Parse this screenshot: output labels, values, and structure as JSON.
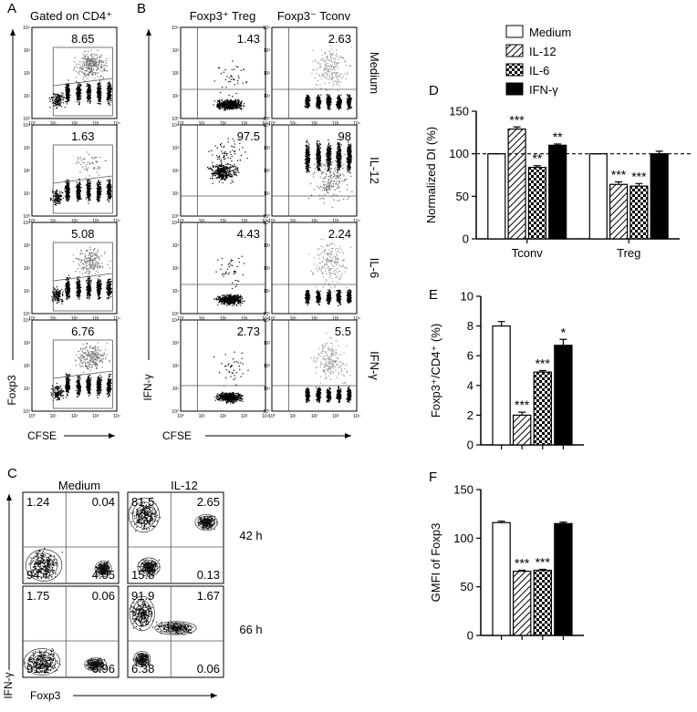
{
  "panel_letters": [
    "A",
    "B",
    "C",
    "D",
    "E",
    "F"
  ],
  "flow": {
    "axis_ticks": [
      "10⁰",
      "10¹",
      "10²",
      "10³",
      "10⁴"
    ],
    "a": {
      "title": "Gated on CD4⁺",
      "y_label": "Foxp3",
      "x_label": "CFSE",
      "gates": [
        8.65,
        1.63,
        5.08,
        6.76
      ]
    },
    "b": {
      "columns": [
        "Foxp3⁺ Treg",
        "Foxp3⁻ Tconv"
      ],
      "rows": [
        "Medium",
        "IL-12",
        "IL-6",
        "IFN-γ"
      ],
      "y_label": "IFN-γ",
      "x_label": "CFSE",
      "values": [
        [
          1.43,
          2.63
        ],
        [
          97.5,
          98
        ],
        [
          4.43,
          2.24
        ],
        [
          2.73,
          5.5
        ]
      ]
    },
    "c": {
      "columns": [
        "Medium",
        "IL-12"
      ],
      "rows": [
        "42 h",
        "66 h"
      ],
      "y_label": "IFN-γ",
      "x_label": "Foxp3",
      "quadrants": [
        [
          [
            1.24,
            0.04,
            94.7,
            4.05
          ],
          [
            81.5,
            2.65,
            15.8,
            0.13
          ]
        ],
        [
          [
            1.75,
            0.06,
            91.2,
            6.96
          ],
          [
            91.9,
            1.67,
            6.38,
            0.06
          ]
        ]
      ]
    }
  },
  "chart_data": [
    {
      "type": "bar",
      "y_label": "Normalized DI (%)",
      "categories": [
        "Tconv",
        "Treg"
      ],
      "legend": "above",
      "reference_line": 100,
      "ylim": [
        0,
        150
      ],
      "yticks": [
        0,
        50,
        100,
        150
      ],
      "series": [
        {
          "name": "Medium",
          "fill": "white",
          "values": [
            100,
            100
          ],
          "errors": [
            0,
            0
          ],
          "annotations": [
            null,
            null
          ]
        },
        {
          "name": "IL-12",
          "fill": "hatch",
          "values": [
            129,
            64
          ],
          "errors": [
            2.5,
            3
          ],
          "annotations": [
            "***",
            "***"
          ]
        },
        {
          "name": "IL-6",
          "fill": "check",
          "values": [
            84,
            62
          ],
          "errors": [
            2,
            3
          ],
          "annotations": [
            "**",
            "***"
          ]
        },
        {
          "name": "IFN-γ",
          "fill": "black",
          "values": [
            110,
            100
          ],
          "errors": [
            1.5,
            3
          ],
          "annotations": [
            "**",
            null
          ]
        }
      ]
    },
    {
      "type": "bar",
      "y_label": "Foxp3⁺/CD4⁺ (%)",
      "categories": [
        null
      ],
      "ylim": [
        0,
        10
      ],
      "yticks": [
        0,
        2,
        4,
        6,
        8,
        10
      ],
      "series": [
        {
          "fill": "white",
          "values": [
            8
          ],
          "errors": [
            0.3
          ],
          "annotations": [
            null
          ]
        },
        {
          "fill": "hatch",
          "values": [
            2
          ],
          "errors": [
            0.2
          ],
          "annotations": [
            "***"
          ]
        },
        {
          "fill": "check",
          "values": [
            4.9
          ],
          "errors": [
            0.1
          ],
          "annotations": [
            "***"
          ]
        },
        {
          "fill": "black",
          "values": [
            6.7
          ],
          "errors": [
            0.4
          ],
          "annotations": [
            "*"
          ]
        }
      ]
    },
    {
      "type": "bar",
      "y_label": "GMFI of Foxp3",
      "categories": [
        null
      ],
      "ylim": [
        0,
        150
      ],
      "yticks": [
        0,
        50,
        100,
        150
      ],
      "series": [
        {
          "fill": "white",
          "values": [
            116
          ],
          "errors": [
            1.5
          ],
          "annotations": [
            null
          ]
        },
        {
          "fill": "hatch",
          "values": [
            66
          ],
          "errors": [
            1
          ],
          "annotations": [
            "***"
          ]
        },
        {
          "fill": "check",
          "values": [
            67
          ],
          "errors": [
            1
          ],
          "annotations": [
            "***"
          ]
        },
        {
          "fill": "black",
          "values": [
            115
          ],
          "errors": [
            1.5
          ],
          "annotations": [
            null
          ]
        }
      ]
    }
  ]
}
